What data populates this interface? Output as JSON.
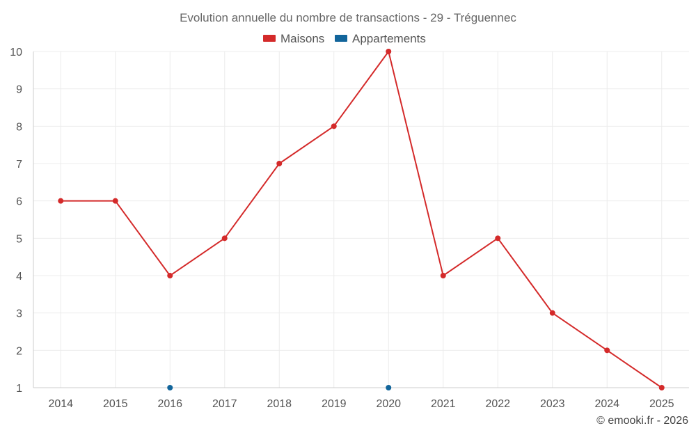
{
  "chart_data": {
    "type": "line",
    "title": "Evolution annuelle du nombre de transactions - 29 - Tréguennec",
    "x": [
      "2014",
      "2015",
      "2016",
      "2017",
      "2018",
      "2019",
      "2020",
      "2021",
      "2022",
      "2023",
      "2024",
      "2025"
    ],
    "y_ticks": [
      "1",
      "2",
      "3",
      "4",
      "5",
      "6",
      "7",
      "8",
      "9",
      "10"
    ],
    "ylim": [
      1,
      10
    ],
    "grid": true,
    "legend_position": "top-center",
    "series": [
      {
        "name": "Maisons",
        "color": "#d42a2a",
        "values": [
          6,
          6,
          4,
          5,
          7,
          8,
          10,
          4,
          5,
          3,
          2,
          1
        ],
        "show_line": true
      },
      {
        "name": "Appartements",
        "color": "#12659b",
        "values": [
          null,
          null,
          1,
          null,
          null,
          null,
          1,
          null,
          null,
          null,
          null,
          null
        ],
        "show_line": false
      }
    ],
    "credit": "© emooki.fr - 2026"
  }
}
